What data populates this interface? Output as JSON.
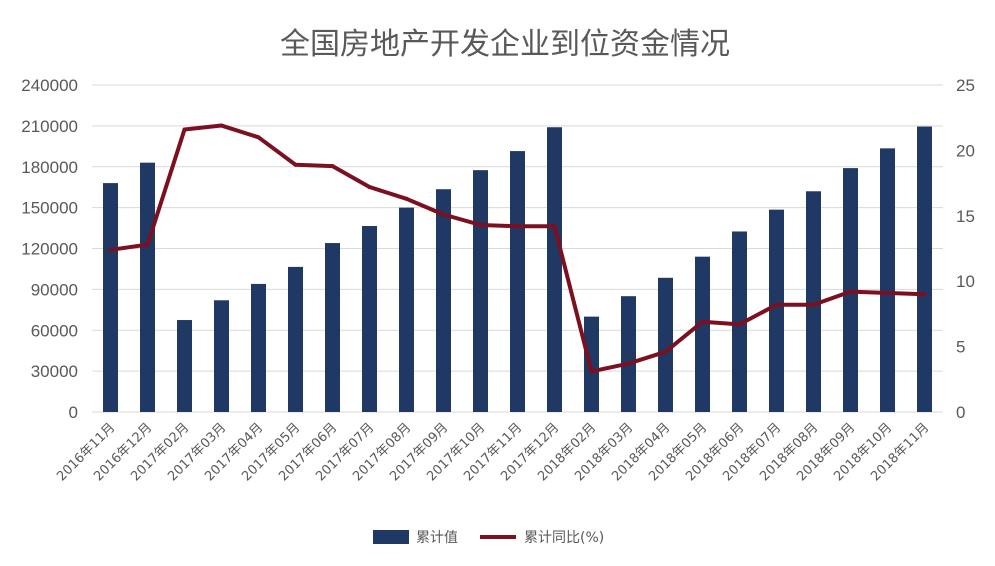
{
  "chart_data": {
    "type": "bar",
    "title": "全国房地产开发企业到位资金情况",
    "categories": [
      "2016年11月",
      "2016年12月",
      "2017年02月",
      "2017年03月",
      "2017年04月",
      "2017年05月",
      "2017年06月",
      "2017年07月",
      "2017年08月",
      "2017年09月",
      "2017年10月",
      "2017年11月",
      "2017年12月",
      "2018年02月",
      "2018年03月",
      "2018年04月",
      "2018年05月",
      "2018年06月",
      "2018年07月",
      "2018年08月",
      "2018年09月",
      "2018年10月",
      "2018年11月"
    ],
    "series": [
      {
        "name": "累计值",
        "type": "bar",
        "axis": "left",
        "color": "#1f3864",
        "values": [
          168000,
          183000,
          67500,
          82000,
          94000,
          106500,
          124000,
          136500,
          150000,
          163500,
          177500,
          191500,
          209000,
          70000,
          85000,
          98500,
          114000,
          132500,
          148500,
          162000,
          179000,
          193500,
          209500
        ]
      },
      {
        "name": "累计同比(%)",
        "type": "line",
        "axis": "right",
        "color": "#7b1020",
        "values": [
          12.4,
          12.8,
          21.6,
          21.9,
          21.0,
          18.9,
          18.8,
          17.2,
          16.3,
          15.1,
          14.3,
          14.2,
          14.2,
          3.1,
          3.7,
          4.6,
          6.9,
          6.7,
          8.2,
          8.2,
          9.2,
          9.1,
          9.0
        ]
      }
    ],
    "y_left": {
      "lim": [
        0,
        240000
      ],
      "ticks": [
        "0",
        "30000",
        "60000",
        "90000",
        "120000",
        "150000",
        "180000",
        "210000",
        "240000"
      ]
    },
    "y_right": {
      "lim": [
        0,
        25
      ],
      "ticks": [
        "0",
        "5",
        "10",
        "15",
        "20",
        "25"
      ]
    },
    "legend": "bottom"
  }
}
